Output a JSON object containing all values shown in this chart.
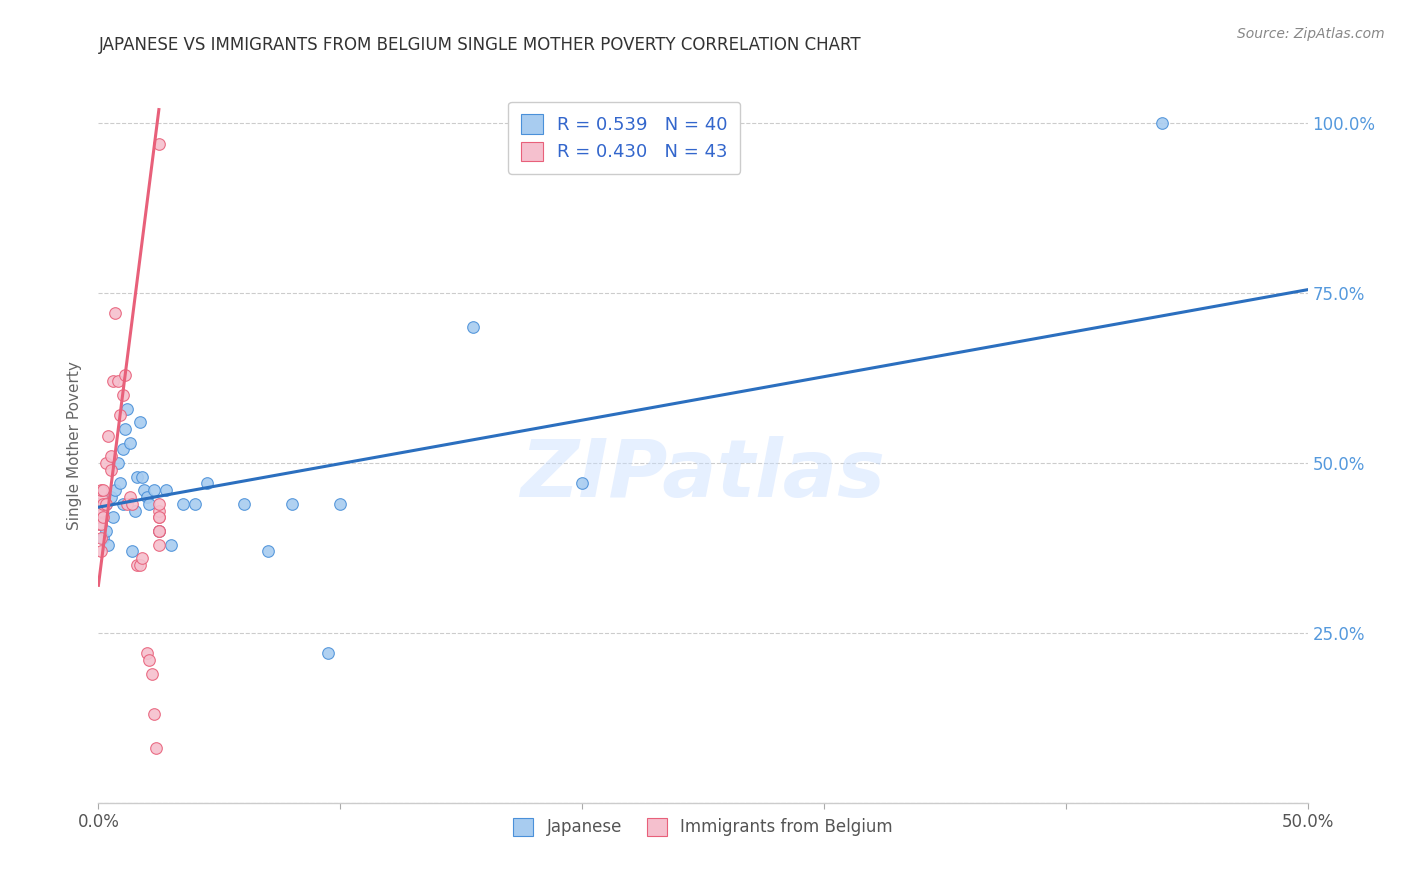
{
  "title": "JAPANESE VS IMMIGRANTS FROM BELGIUM SINGLE MOTHER POVERTY CORRELATION CHART",
  "source": "Source: ZipAtlas.com",
  "ylabel": "Single Mother Poverty",
  "xlim": [
    0.0,
    0.5
  ],
  "ylim": [
    0.0,
    1.05
  ],
  "xtick_positions": [
    0.0,
    0.1,
    0.2,
    0.3,
    0.4,
    0.5
  ],
  "xticklabels": [
    "0.0%",
    "",
    "",
    "",
    "",
    "50.0%"
  ],
  "ytick_positions": [
    0.0,
    0.25,
    0.5,
    0.75,
    1.0
  ],
  "yticklabels_right": [
    "",
    "25.0%",
    "50.0%",
    "75.0%",
    "100.0%"
  ],
  "watermark": "ZIPatlas",
  "blue_fill": "#A8CCF0",
  "pink_fill": "#F5C0CE",
  "blue_edge": "#4A90D9",
  "pink_edge": "#E8607A",
  "blue_line_color": "#2B6FBF",
  "pink_line_color": "#E8607A",
  "legend1_blue_label": "R = 0.539   N = 40",
  "legend1_pink_label": "R = 0.430   N = 43",
  "legend2_blue_label": "Japanese",
  "legend2_pink_label": "Immigrants from Belgium",
  "blue_regression_x0": 0.0,
  "blue_regression_y0": 0.435,
  "blue_regression_x1": 0.5,
  "blue_regression_y1": 0.755,
  "pink_regression_x0": 0.0,
  "pink_regression_y0": 0.32,
  "pink_regression_x1": 0.025,
  "pink_regression_y1": 1.02,
  "japanese_x": [
    0.001,
    0.001,
    0.002,
    0.002,
    0.003,
    0.003,
    0.004,
    0.005,
    0.006,
    0.007,
    0.008,
    0.009,
    0.01,
    0.01,
    0.011,
    0.012,
    0.013,
    0.014,
    0.015,
    0.016,
    0.017,
    0.018,
    0.019,
    0.02,
    0.021,
    0.023,
    0.025,
    0.028,
    0.03,
    0.035,
    0.04,
    0.045,
    0.06,
    0.07,
    0.08,
    0.095,
    0.1,
    0.155,
    0.2,
    0.44
  ],
  "japanese_y": [
    0.41,
    0.43,
    0.39,
    0.42,
    0.4,
    0.44,
    0.38,
    0.45,
    0.42,
    0.46,
    0.5,
    0.47,
    0.52,
    0.44,
    0.55,
    0.58,
    0.53,
    0.37,
    0.43,
    0.48,
    0.56,
    0.48,
    0.46,
    0.45,
    0.44,
    0.46,
    0.4,
    0.46,
    0.38,
    0.44,
    0.44,
    0.47,
    0.44,
    0.37,
    0.44,
    0.22,
    0.44,
    0.7,
    0.47,
    1.0
  ],
  "belgium_x": [
    0.0,
    0.0,
    0.0,
    0.0,
    0.001,
    0.001,
    0.001,
    0.001,
    0.001,
    0.001,
    0.002,
    0.002,
    0.002,
    0.003,
    0.003,
    0.004,
    0.005,
    0.005,
    0.006,
    0.007,
    0.008,
    0.009,
    0.01,
    0.011,
    0.012,
    0.013,
    0.014,
    0.016,
    0.017,
    0.018,
    0.02,
    0.021,
    0.022,
    0.023,
    0.024,
    0.025,
    0.025,
    0.025,
    0.025,
    0.025,
    0.025,
    0.025,
    0.025
  ],
  "belgium_y": [
    0.41,
    0.42,
    0.43,
    0.44,
    0.37,
    0.39,
    0.41,
    0.43,
    0.45,
    0.46,
    0.42,
    0.44,
    0.46,
    0.44,
    0.5,
    0.54,
    0.49,
    0.51,
    0.62,
    0.72,
    0.62,
    0.57,
    0.6,
    0.63,
    0.44,
    0.45,
    0.44,
    0.35,
    0.35,
    0.36,
    0.22,
    0.21,
    0.19,
    0.13,
    0.08,
    0.4,
    0.42,
    0.43,
    0.44,
    0.42,
    0.4,
    0.38,
    0.97
  ]
}
